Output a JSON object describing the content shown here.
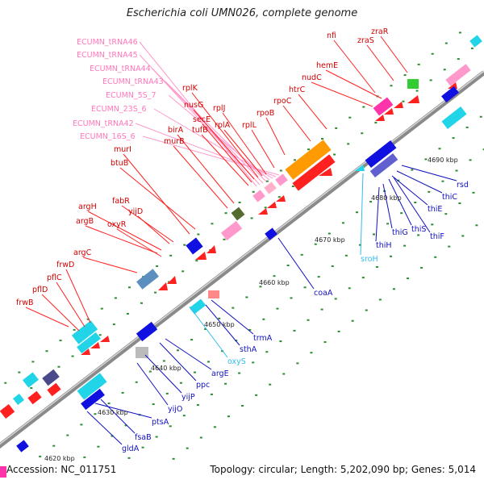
{
  "title": "Escherichia coli UMN026, complete genome",
  "footer": {
    "accession": "Accession: NC_011751",
    "summary": "Topology: circular; Length: 5,202,090 bp; Genes: 5,014"
  },
  "scale_labels": [
    "4620 kbp",
    "4630 kbp",
    "4640 kbp",
    "4650 kbp",
    "4660 kbp",
    "4670 kbp",
    "4680 kbp",
    "4690 kbp"
  ],
  "colors": {
    "red_gene": "#ff2020",
    "blue_gene": "#1010e0",
    "pink_rna": "#ff99cc",
    "cyan": "#22d4e8",
    "orange": "#ff9a00",
    "backbone": "#7f7f7f",
    "tick": "#2e8b2e"
  },
  "labels": {
    "top_left": [
      "ECUMN_tRNA46",
      "ECUMN_tRNA45",
      "ECUMN_tRNA44",
      "ECUMN_tRNA43",
      "ECUMN_5S_7",
      "ECUMN_23S_6",
      "ECUMN_tRNA42",
      "ECUMN_16S_6"
    ],
    "top_red": [
      "zraR",
      "zraS",
      "nfi",
      "hemE",
      "nudC",
      "htrC",
      "rpoC",
      "rpoB",
      "rplL",
      "rplJ",
      "rplA",
      "rplK",
      "nusG",
      "secE",
      "tufB",
      "birA",
      "murB",
      "murI",
      "btuB",
      "fabR",
      "yijD",
      "argH",
      "argB",
      "oxyR",
      "argC",
      "frwD",
      "pflC",
      "pflD",
      "frwB"
    ],
    "bottom_blue": [
      "rsd",
      "thiC",
      "thiE",
      "thiS",
      "thiF",
      "thiG",
      "thiH",
      "sroH",
      "coaA",
      "trmA",
      "sthA",
      "oxyS",
      "argE",
      "ppc",
      "yijP",
      "yijO",
      "ptsA",
      "fsaB",
      "gldA"
    ]
  }
}
